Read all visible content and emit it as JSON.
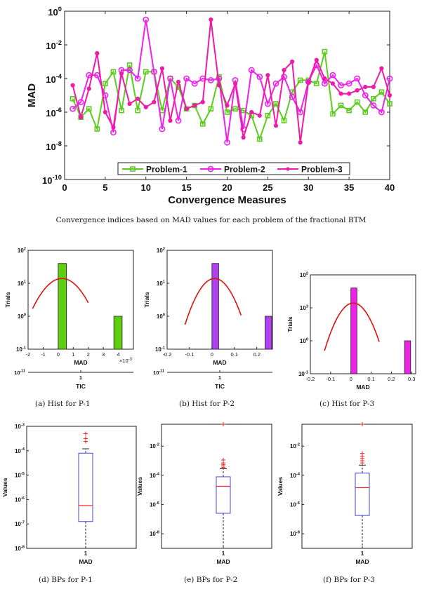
{
  "main_caption": "Convergence indices based on MAD values for each problem of the fractional BTM",
  "panel_captions": [
    "(a) Hist for P-1",
    "(b) Hist for P-2",
    "(c) Hist for P-3",
    "(d) BPs for P-1",
    "(e) BPs for P-2",
    "(f) BPs for P-3"
  ],
  "colors": {
    "p1": "#5ccc1e",
    "p2": "#ee22ee",
    "p3": "#ee1aa8",
    "hist1": "#5ecf10",
    "hist2": "#b040f0",
    "hist3": "#ee22e6",
    "fit": "#dd1111",
    "box": "#4444ee",
    "median": "#ee2222",
    "outlier": "#ee2222"
  },
  "chart_data": [
    {
      "type": "line",
      "scale_y": "log",
      "xlabel": "Convergence Measures",
      "ylabel": "MAD",
      "xlim": [
        0,
        40
      ],
      "ylim_exp": [
        -10,
        0
      ],
      "xticks": [
        0,
        5,
        10,
        15,
        20,
        25,
        30,
        35,
        40
      ],
      "yticks_exp": [
        -10,
        -8,
        -6,
        -4,
        -2,
        0
      ],
      "legend_position": "bottom-center",
      "series": [
        {
          "name": "Problem-1",
          "marker": "square",
          "x": [
            1,
            2,
            3,
            4,
            5,
            6,
            7,
            8,
            9,
            10,
            11,
            12,
            13,
            14,
            15,
            16,
            17,
            18,
            19,
            20,
            21,
            22,
            23,
            24,
            25,
            26,
            27,
            28,
            29,
            30,
            31,
            32,
            33,
            34,
            35,
            36,
            37,
            38,
            39,
            40
          ],
          "log10_y": [
            -5.2,
            -6.3,
            -5.8,
            -7.0,
            -4.3,
            -3.6,
            -5.9,
            -3.2,
            -5.9,
            -3.6,
            -3.6,
            -5.9,
            -4.0,
            -4.5,
            -5.8,
            -5.6,
            -6.7,
            -5.8,
            -3.9,
            -6.0,
            -5.8,
            -5.9,
            -6.2,
            -7.6,
            -6.2,
            -5.5,
            -6.5,
            -4.8,
            -4.1,
            -4.1,
            -4.3,
            -2.4,
            -6.1,
            -5.6,
            -5.9,
            -5.4,
            -6.0,
            -5.2,
            -4.8,
            -5.5
          ]
        },
        {
          "name": "Problem-2",
          "marker": "circle",
          "x": [
            1,
            2,
            3,
            4,
            5,
            6,
            7,
            8,
            9,
            10,
            11,
            12,
            13,
            14,
            15,
            16,
            17,
            18,
            19,
            20,
            21,
            22,
            23,
            24,
            25,
            26,
            27,
            28,
            29,
            30,
            31,
            32,
            33,
            34,
            35,
            36,
            37,
            38,
            39,
            40
          ],
          "log10_y": [
            -5.8,
            -5.4,
            -3.8,
            -3.8,
            -5.0,
            -7.2,
            -3.5,
            -3.5,
            -4.0,
            -0.5,
            -3.6,
            -7.0,
            -4.0,
            -6.5,
            -4.0,
            -4.3,
            -4.0,
            -4.1,
            -4.0,
            -7.8,
            -4.1,
            -7.0,
            -3.5,
            -3.9,
            -5.5,
            -4.3,
            -3.9,
            -5.1,
            -6.0,
            -4.2,
            -3.2,
            -4.3,
            -3.8,
            -4.4,
            -4.3,
            -4.0,
            -5.0,
            -5.6,
            -6.0,
            -4.0
          ]
        },
        {
          "name": "Problem-3",
          "marker": "dot",
          "x": [
            1,
            2,
            3,
            4,
            5,
            6,
            7,
            8,
            9,
            10,
            11,
            12,
            13,
            14,
            15,
            16,
            17,
            18,
            19,
            20,
            21,
            22,
            23,
            24,
            25,
            26,
            27,
            28,
            29,
            30,
            31,
            32,
            33,
            34,
            35,
            36,
            37,
            38,
            39,
            40
          ],
          "log10_y": [
            -4.4,
            -6.3,
            -4.6,
            -2.5,
            -6.0,
            -6.9,
            -3.7,
            -5.5,
            -5.2,
            -5.7,
            -5.4,
            -3.4,
            -6.5,
            -4.2,
            -5.8,
            -5.6,
            -5.4,
            -0.5,
            -4.4,
            -5.6,
            -4.3,
            -7.5,
            -6.0,
            -6.2,
            -3.8,
            -6.8,
            -3.5,
            -3.0,
            -7.8,
            -4.2,
            -2.9,
            -4.0,
            -4.3,
            -4.9,
            -4.9,
            -4.7,
            -4.5,
            -4.5,
            -3.4,
            -5.0
          ]
        }
      ]
    },
    {
      "type": "bar",
      "scale_y": "log",
      "panel": "a",
      "xlabel": "MAD",
      "ylabel": "Trials",
      "xticks": [
        "-2",
        "-1",
        "0",
        "1",
        "2",
        "3",
        "4"
      ],
      "x_multiplier": "×10",
      "x_multiplier_exp": "-3",
      "yticks_exp": [
        -1,
        0,
        1,
        2
      ],
      "ylim_exp": [
        -1,
        2
      ],
      "xlim": [
        -2,
        5
      ],
      "bars": [
        {
          "x0": 0,
          "x1": 0.55,
          "count": 40
        },
        {
          "x0": 3.7,
          "x1": 4.25,
          "count": 1
        }
      ],
      "fit_curve": {
        "mu": 0.25,
        "sigma": 0.95,
        "peak": 14,
        "x_from": -1.7,
        "x_to": 2.0
      },
      "sub_axis": {
        "tick": "1",
        "xlabel": "TIC",
        "corner_label": "10",
        "corner_exp": "-11"
      }
    },
    {
      "type": "bar",
      "scale_y": "log",
      "panel": "b",
      "xlabel": "MAD",
      "ylabel": "Trials",
      "xticks": [
        "-0.2",
        "-0.1",
        "0",
        "0.1",
        "0.2"
      ],
      "yticks_exp": [
        -1,
        0,
        1,
        2
      ],
      "ylim_exp": [
        -1,
        2
      ],
      "xlim": [
        -0.2,
        0.27
      ],
      "bars": [
        {
          "x0": 0,
          "x1": 0.03,
          "count": 40
        },
        {
          "x0": 0.237,
          "x1": 0.267,
          "count": 1
        }
      ],
      "fit_curve": {
        "mu": 0.012,
        "sigma": 0.052,
        "peak": 14,
        "x_from": -0.12,
        "x_to": 0.13
      },
      "sub_axis": {
        "tick": "1",
        "xlabel": "TIC",
        "corner_label": "10",
        "corner_exp": "-11"
      }
    },
    {
      "type": "bar",
      "scale_y": "log",
      "panel": "c",
      "xlabel": "MAD",
      "ylabel": "Trials",
      "xticks": [
        "-0.2",
        "-0.1",
        "0",
        "0.1",
        "0.2",
        "0.3"
      ],
      "yticks_exp": [
        -1,
        0,
        1,
        2
      ],
      "ylim_exp": [
        -1,
        2
      ],
      "xlim": [
        -0.2,
        0.32
      ],
      "bars": [
        {
          "x0": 0,
          "x1": 0.03,
          "count": 40
        },
        {
          "x0": 0.265,
          "x1": 0.295,
          "count": 1
        }
      ],
      "fit_curve": {
        "mu": 0.012,
        "sigma": 0.055,
        "peak": 14,
        "x_from": -0.13,
        "x_to": 0.14
      }
    },
    {
      "type": "box",
      "scale_y": "log",
      "panel": "d",
      "ylabel": "Values",
      "xtick": "1",
      "xlabel": "MAD",
      "ylim_exp": [
        -8,
        -3
      ],
      "yticks_exp": [
        -8,
        -7,
        -6,
        -5,
        -4,
        -3
      ],
      "box": {
        "q1_exp": -6.9,
        "median_exp": -6.25,
        "q3_exp": -4.1,
        "whisker_low_exp": -8,
        "whisker_high_exp": -3.92
      },
      "outliers_exp": [
        -3.62,
        -3.5,
        -3.3
      ]
    },
    {
      "type": "box",
      "scale_y": "log",
      "panel": "e",
      "ylabel": "Values",
      "xtick": "1",
      "xlabel": "MAD",
      "ylim_exp": [
        -9,
        -0.5
      ],
      "yticks_exp": [
        -8,
        -6,
        -4,
        -2
      ],
      "box": {
        "q1_exp": -6.6,
        "median_exp": -4.75,
        "q3_exp": -4.1,
        "whisker_low_exp": -9,
        "whisker_high_exp": -3.55
      },
      "outliers_exp": [
        -3.45,
        -3.35,
        -3.25,
        -3.15,
        -2.95,
        -0.5
      ]
    },
    {
      "type": "box",
      "scale_y": "log",
      "panel": "f",
      "ylabel": "Values",
      "xtick": "1",
      "xlabel": "MAD",
      "ylim_exp": [
        -9,
        -0.5
      ],
      "yticks_exp": [
        -8,
        -6,
        -4,
        -2
      ],
      "box": {
        "q1_exp": -6.75,
        "median_exp": -4.85,
        "q3_exp": -3.85,
        "whisker_low_exp": -9,
        "whisker_high_exp": -3.3
      },
      "outliers_exp": [
        -3.15,
        -3.0,
        -2.85,
        -2.7,
        -2.5,
        -0.5
      ]
    }
  ]
}
